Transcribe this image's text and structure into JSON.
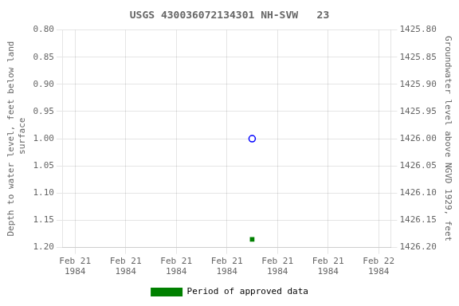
{
  "chart_data": {
    "type": "scatter",
    "title": "USGS 430036072134301 NH-SVW   23",
    "ylabel": "Depth to water level, feet below land\n surface",
    "y2label": "Groundwater level above NGVD 1929, feet",
    "x": [
      84
    ],
    "series": [
      {
        "color": "blue",
        "marker": "open_circle",
        "values": [
          1.0
        ]
      },
      {
        "name": "Period of approved data",
        "color": "#008000",
        "marker": "square",
        "values": [
          1.185
        ]
      }
    ],
    "xlim": [
      -5.76,
      149.76
    ],
    "xticks": [
      {
        "value": 0,
        "label": "Feb 21\n1984"
      },
      {
        "value": 24,
        "label": "Feb 21\n1984"
      },
      {
        "value": 48,
        "label": "Feb 21\n1984"
      },
      {
        "value": 72,
        "label": "Feb 21\n1984"
      },
      {
        "value": 96,
        "label": "Feb 21\n1984"
      },
      {
        "value": 120,
        "label": "Feb 21\n1984"
      },
      {
        "value": 144,
        "label": "Feb 22\n1984"
      }
    ],
    "ylim": [
      1.2,
      0.8
    ],
    "yticks": [
      {
        "value": 0.8,
        "label": "0.80"
      },
      0.85,
      {
        "value": 0.9,
        "label": "0.90"
      },
      0.95,
      {
        "value": 1.0,
        "label": "1.00"
      },
      1.05,
      {
        "value": 1.1,
        "label": "1.10"
      },
      1.15,
      {
        "value": 1.2,
        "label": "1.20"
      }
    ],
    "y2lim": [
      1426.2,
      1425.8
    ],
    "y2ticks": [
      {
        "value": 1425.8,
        "label": "1425.80"
      },
      1425.85,
      {
        "value": 1425.9,
        "label": "1425.90"
      },
      1425.95,
      {
        "value": 1426.0,
        "label": "1426.00"
      },
      1426.05,
      {
        "value": 1426.1,
        "label": "1426.10"
      },
      1426.15,
      {
        "value": 1426.2,
        "label": "1426.20"
      }
    ],
    "grid": true,
    "legend": "bottom"
  }
}
